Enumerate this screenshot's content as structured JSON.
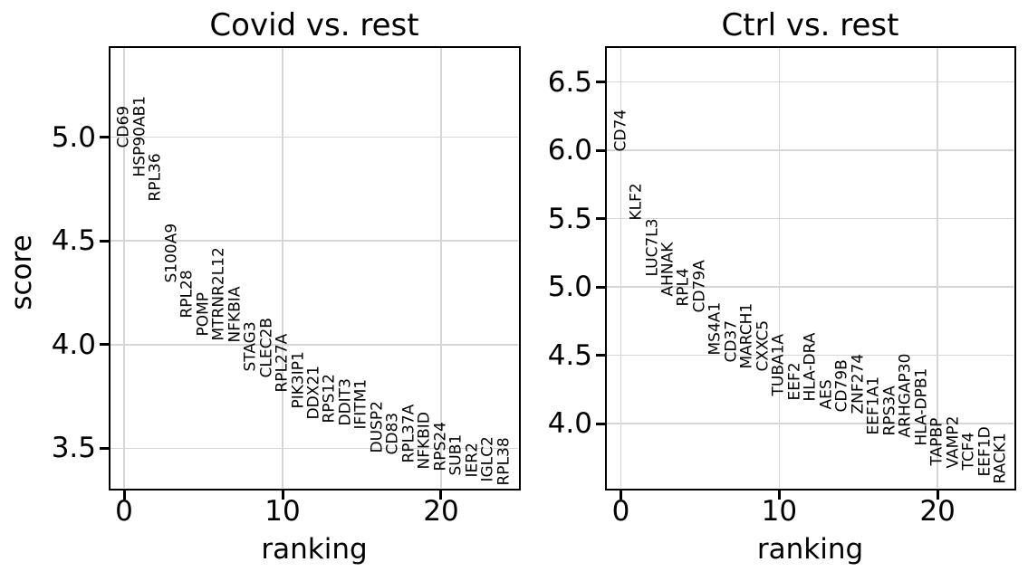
{
  "figure": {
    "background_color": "#ffffff",
    "text_color": "#000000",
    "grid_color": "#d6d6d6",
    "frame_color": "#000000",
    "grid": true,
    "legend": "none"
  },
  "chart_data": [
    {
      "type": "scatter",
      "marker": "vertical gene-name text label at each (ranking, score) point",
      "title": "Covid vs. rest",
      "xlabel": "ranking",
      "ylabel": "score",
      "xlim": [
        -0.86,
        24.86
      ],
      "ylim": [
        3.31,
        5.43
      ],
      "xticks": [
        0,
        10,
        20
      ],
      "yticks": [
        3.5,
        4.0,
        4.5,
        5.0
      ],
      "points": [
        {
          "gene": "CD69",
          "ranking": 0,
          "score": 4.95
        },
        {
          "gene": "HSP90AB1",
          "ranking": 1,
          "score": 4.81
        },
        {
          "gene": "RPL36",
          "ranking": 2,
          "score": 4.69
        },
        {
          "gene": "S100A9",
          "ranking": 3,
          "score": 4.3
        },
        {
          "gene": "RPL28",
          "ranking": 4,
          "score": 4.13
        },
        {
          "gene": "POMP",
          "ranking": 5,
          "score": 4.04
        },
        {
          "gene": "MTRNR2L12",
          "ranking": 6,
          "score": 4.02
        },
        {
          "gene": "NFKBIA",
          "ranking": 7,
          "score": 4.01
        },
        {
          "gene": "STAG3",
          "ranking": 8,
          "score": 3.87
        },
        {
          "gene": "CLEC2B",
          "ranking": 9,
          "score": 3.84
        },
        {
          "gene": "RPL27A",
          "ranking": 10,
          "score": 3.77
        },
        {
          "gene": "PIK3IP1",
          "ranking": 11,
          "score": 3.69
        },
        {
          "gene": "DDX21",
          "ranking": 12,
          "score": 3.64
        },
        {
          "gene": "RPS12",
          "ranking": 13,
          "score": 3.62
        },
        {
          "gene": "DDIT3",
          "ranking": 14,
          "score": 3.61
        },
        {
          "gene": "IFITM1",
          "ranking": 15,
          "score": 3.59
        },
        {
          "gene": "DUSP2",
          "ranking": 16,
          "score": 3.48
        },
        {
          "gene": "CD83",
          "ranking": 17,
          "score": 3.47
        },
        {
          "gene": "RPL37A",
          "ranking": 18,
          "score": 3.43
        },
        {
          "gene": "NFKBID",
          "ranking": 19,
          "score": 3.4
        },
        {
          "gene": "RPS24",
          "ranking": 20,
          "score": 3.39
        },
        {
          "gene": "SUB1",
          "ranking": 21,
          "score": 3.37
        },
        {
          "gene": "IER2",
          "ranking": 22,
          "score": 3.36
        },
        {
          "gene": "IGLC2",
          "ranking": 23,
          "score": 3.34
        },
        {
          "gene": "RPL38",
          "ranking": 24,
          "score": 3.32
        }
      ]
    },
    {
      "type": "scatter",
      "marker": "vertical gene-name text label at each (ranking, score) point",
      "title": "Ctrl vs. rest",
      "xlabel": "ranking",
      "ylabel": "",
      "xlim": [
        -0.89,
        24.8
      ],
      "ylim": [
        3.53,
        6.75
      ],
      "xticks": [
        0,
        10,
        20
      ],
      "yticks": [
        4.0,
        4.5,
        5.0,
        5.5,
        6.0,
        6.5
      ],
      "points": [
        {
          "gene": "CD74",
          "ranking": 0,
          "score": 5.99
        },
        {
          "gene": "KLF2",
          "ranking": 1,
          "score": 5.49
        },
        {
          "gene": "LUC7L3",
          "ranking": 2,
          "score": 5.08
        },
        {
          "gene": "AHNAK",
          "ranking": 3,
          "score": 4.93
        },
        {
          "gene": "RPL4",
          "ranking": 4,
          "score": 4.86
        },
        {
          "gene": "CD79A",
          "ranking": 5,
          "score": 4.81
        },
        {
          "gene": "MS4A1",
          "ranking": 6,
          "score": 4.5
        },
        {
          "gene": "CD37",
          "ranking": 7,
          "score": 4.45
        },
        {
          "gene": "MARCH1",
          "ranking": 8,
          "score": 4.4
        },
        {
          "gene": "CXXC5",
          "ranking": 9,
          "score": 4.38
        },
        {
          "gene": "TUBA1A",
          "ranking": 10,
          "score": 4.2
        },
        {
          "gene": "EEF2",
          "ranking": 11,
          "score": 4.17
        },
        {
          "gene": "HLA-DRA",
          "ranking": 12,
          "score": 4.16
        },
        {
          "gene": "AES",
          "ranking": 13,
          "score": 4.1
        },
        {
          "gene": "CD79B",
          "ranking": 14,
          "score": 4.08
        },
        {
          "gene": "ZNF274",
          "ranking": 15,
          "score": 4.07
        },
        {
          "gene": "EEF1A1",
          "ranking": 16,
          "score": 3.92
        },
        {
          "gene": "RPS3A",
          "ranking": 17,
          "score": 3.91
        },
        {
          "gene": "ARHGAP30",
          "ranking": 18,
          "score": 3.9
        },
        {
          "gene": "HLA-DPB1",
          "ranking": 19,
          "score": 3.84
        },
        {
          "gene": "TAPBP",
          "ranking": 20,
          "score": 3.69
        },
        {
          "gene": "VAMP2",
          "ranking": 21,
          "score": 3.67
        },
        {
          "gene": "TCF4",
          "ranking": 22,
          "score": 3.66
        },
        {
          "gene": "EEF1D",
          "ranking": 23,
          "score": 3.61
        },
        {
          "gene": "RACK1",
          "ranking": 24,
          "score": 3.56
        }
      ]
    }
  ]
}
